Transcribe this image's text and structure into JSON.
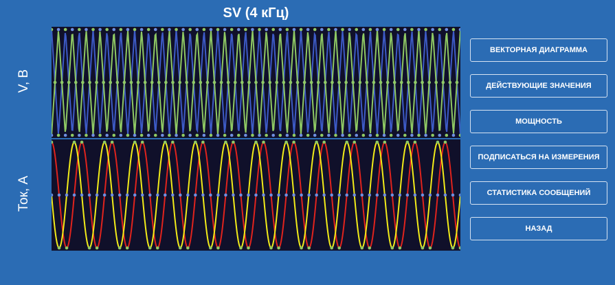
{
  "header": {
    "title": "SV (4 кГц)"
  },
  "plots": {
    "voltage": {
      "ylabel": "V, В",
      "series": [
        {
          "color": "#3d5bc7",
          "cycles": 29.5,
          "phase": 0.0,
          "shape": "triangle"
        },
        {
          "color": "#8fc964",
          "cycles": 29.5,
          "phase": 0.5,
          "shape": "triangle"
        }
      ]
    },
    "current": {
      "ylabel": "Ток, А",
      "series": [
        {
          "color": "#e0231d",
          "cycles": 13.5,
          "phase": 0.0,
          "shape": "sine"
        },
        {
          "color": "#f2ec19",
          "cycles": 13.5,
          "phase": 0.25,
          "shape": "sine"
        }
      ]
    },
    "sample_dot_colors": [
      "#8fc964",
      "#6f8ee0"
    ]
  },
  "menu": {
    "items": [
      "ВЕКТОРНАЯ ДИАГРАММА",
      "ДЕЙСТВУЮЩИЕ ЗНАЧЕНИЯ",
      "МОЩНОСТЬ",
      "ПОДПИСАТЬСЯ НА ИЗМЕРЕНИЯ",
      "СТАТИСТИКА СООБЩЕНИЙ",
      "НАЗАД"
    ]
  },
  "colors": {
    "background": "#2b6cb4",
    "plot_background": "#10102a"
  }
}
